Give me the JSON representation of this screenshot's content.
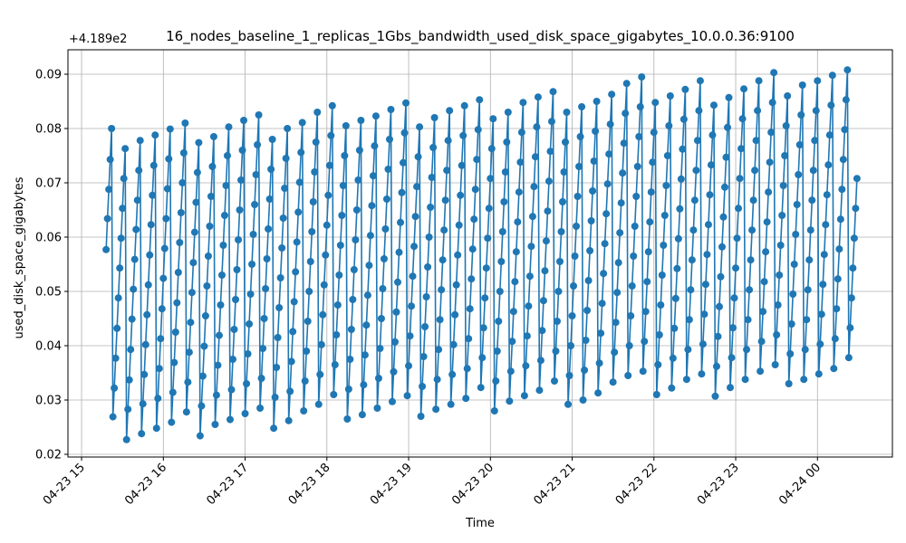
{
  "chart_data": {
    "type": "line",
    "title": "16_nodes_baseline_1_replicas_1Gbs_bandwidth_used_disk_space_gigabytes_10.0.0.36:9100",
    "xlabel": "Time",
    "ylabel": "used_disk_space_gigabytes",
    "offset_label": "+4.189e2",
    "y_offset": 418.9,
    "xlim": [
      "2024-04-23 14:50",
      "2024-04-24 00:55"
    ],
    "ylim": [
      0.0195,
      0.0945
    ],
    "x_ticks": [
      {
        "value": "2024-04-23 15:00",
        "label": "04-23 15"
      },
      {
        "value": "2024-04-23 16:00",
        "label": "04-23 16"
      },
      {
        "value": "2024-04-23 17:00",
        "label": "04-23 17"
      },
      {
        "value": "2024-04-23 18:00",
        "label": "04-23 18"
      },
      {
        "value": "2024-04-23 19:00",
        "label": "04-23 19"
      },
      {
        "value": "2024-04-23 20:00",
        "label": "04-23 20"
      },
      {
        "value": "2024-04-23 21:00",
        "label": "04-23 21"
      },
      {
        "value": "2024-04-23 22:00",
        "label": "04-23 22"
      },
      {
        "value": "2024-04-23 23:00",
        "label": "04-23 23"
      },
      {
        "value": "2024-04-24 00:00",
        "label": "04-24 00"
      }
    ],
    "y_ticks": [
      {
        "value": 0.02,
        "label": "0.02"
      },
      {
        "value": 0.03,
        "label": "0.03"
      },
      {
        "value": 0.04,
        "label": "0.04"
      },
      {
        "value": 0.05,
        "label": "0.05"
      },
      {
        "value": 0.06,
        "label": "0.06"
      },
      {
        "value": 0.07,
        "label": "0.07"
      },
      {
        "value": 0.08,
        "label": "0.08"
      },
      {
        "value": 0.09,
        "label": "0.09"
      }
    ],
    "grid": true,
    "line_color": "#1f77b4",
    "marker": "circle",
    "series": [
      {
        "start": "2024-04-23 15:18",
        "step_minutes": 1,
        "values": [
          0.0577,
          0.0634,
          0.0688,
          0.0743,
          0.08,
          0.0269,
          0.0322,
          0.0377,
          0.0432,
          0.0488,
          0.0543,
          0.0598,
          0.0653,
          0.0708,
          0.0763,
          0.0227,
          0.0283,
          0.0337,
          0.0393,
          0.0449,
          0.0504,
          0.0559,
          0.0614,
          0.0668,
          0.0723,
          0.0778,
          0.0238,
          0.0293,
          0.0347,
          0.0402,
          0.0457,
          0.0512,
          0.0567,
          0.0623,
          0.0677,
          0.0732,
          0.0788,
          0.0248,
          0.0303,
          0.0358,
          0.0413,
          0.0468,
          0.0524,
          0.0579,
          0.0634,
          0.0689,
          0.0744,
          0.0799,
          0.0259,
          0.0314,
          0.0369,
          0.0425,
          0.0479,
          0.0535,
          0.059,
          0.0645,
          0.07,
          0.0755,
          0.081,
          0.0278,
          0.0333,
          0.0388,
          0.0443,
          0.0498,
          0.0553,
          0.0609,
          0.0664,
          0.0719,
          0.0774,
          0.0234,
          0.0289,
          0.0344,
          0.0399,
          0.0455,
          0.051,
          0.0565,
          0.062,
          0.0675,
          0.073,
          0.0785,
          0.0255,
          0.0309,
          0.0364,
          0.0419,
          0.0475,
          0.053,
          0.0585,
          0.064,
          0.0695,
          0.075,
          0.0803,
          0.0264,
          0.0319,
          0.0375,
          0.043,
          0.0485,
          0.054,
          0.0595,
          0.065,
          0.0705,
          0.076,
          0.0815,
          0.0275,
          0.033,
          0.0385,
          0.044,
          0.0495,
          0.055,
          0.0605,
          0.066,
          0.0715,
          0.077,
          0.0825,
          0.0285,
          0.034,
          0.0395,
          0.045,
          0.0505,
          0.056,
          0.0615,
          0.067,
          0.0725,
          0.078,
          0.0248,
          0.0305,
          0.036,
          0.0415,
          0.047,
          0.0525,
          0.058,
          0.0635,
          0.069,
          0.0745,
          0.08,
          0.0262,
          0.0316,
          0.0371,
          0.0426,
          0.0481,
          0.0536,
          0.0591,
          0.0646,
          0.0701,
          0.0756,
          0.0811,
          0.028,
          0.0335,
          0.039,
          0.0445,
          0.05,
          0.0555,
          0.061,
          0.0665,
          0.072,
          0.0775,
          0.083,
          0.0292,
          0.0347,
          0.0402,
          0.0457,
          0.0512,
          0.0567,
          0.0622,
          0.0677,
          0.0732,
          0.0787,
          0.0842,
          0.031,
          0.0365,
          0.042,
          0.0475,
          0.053,
          0.0585,
          0.064,
          0.0695,
          0.075,
          0.0805,
          0.0265,
          0.032,
          0.0375,
          0.043,
          0.0485,
          0.054,
          0.0595,
          0.065,
          0.0705,
          0.076,
          0.0815,
          0.0273,
          0.0328,
          0.0383,
          0.0438,
          0.0493,
          0.0548,
          0.0603,
          0.0658,
          0.0713,
          0.0768,
          0.0823,
          0.0285,
          0.034,
          0.0395,
          0.045,
          0.0505,
          0.056,
          0.0615,
          0.067,
          0.0725,
          0.078,
          0.0835,
          0.0297,
          0.0352,
          0.0407,
          0.0462,
          0.0517,
          0.0572,
          0.0627,
          0.0682,
          0.0737,
          0.0792,
          0.0847,
          0.0308,
          0.0363,
          0.0418,
          0.0473,
          0.0528,
          0.0583,
          0.0638,
          0.0693,
          0.0748,
          0.0803,
          0.027,
          0.0325,
          0.038,
          0.0435,
          0.049,
          0.0545,
          0.06,
          0.0655,
          0.071,
          0.0765,
          0.082,
          0.0283,
          0.0338,
          0.0393,
          0.0448,
          0.0503,
          0.0558,
          0.0613,
          0.0668,
          0.0723,
          0.0778,
          0.0833,
          0.0292,
          0.0347,
          0.0402,
          0.0457,
          0.0512,
          0.0567,
          0.0622,
          0.0677,
          0.0732,
          0.0787,
          0.0842,
          0.0303,
          0.0358,
          0.0413,
          0.0468,
          0.0523,
          0.0578,
          0.0633,
          0.0688,
          0.0743,
          0.0798,
          0.0853,
          0.0323,
          0.0378,
          0.0433,
          0.0488,
          0.0543,
          0.0598,
          0.0653,
          0.0708,
          0.0763,
          0.0818,
          0.028,
          0.0335,
          0.039,
          0.0445,
          0.05,
          0.0555,
          0.061,
          0.0665,
          0.072,
          0.0775,
          0.083,
          0.0298,
          0.0353,
          0.0408,
          0.0463,
          0.0518,
          0.0573,
          0.0628,
          0.0683,
          0.0738,
          0.0793,
          0.0848,
          0.0308,
          0.0363,
          0.0418,
          0.0473,
          0.0528,
          0.0583,
          0.0638,
          0.0693,
          0.0748,
          0.0803,
          0.0858,
          0.0318,
          0.0373,
          0.0428,
          0.0483,
          0.0538,
          0.0593,
          0.0648,
          0.0703,
          0.0758,
          0.0813,
          0.0868,
          0.0335,
          0.039,
          0.0445,
          0.05,
          0.0555,
          0.061,
          0.0665,
          0.072,
          0.0775,
          0.083,
          0.0292,
          0.0345,
          0.04,
          0.0455,
          0.051,
          0.0565,
          0.062,
          0.0675,
          0.073,
          0.0785,
          0.084,
          0.03,
          0.0355,
          0.041,
          0.0465,
          0.052,
          0.0575,
          0.063,
          0.0685,
          0.074,
          0.0795,
          0.085,
          0.0313,
          0.0368,
          0.0423,
          0.0478,
          0.0533,
          0.0588,
          0.0643,
          0.0698,
          0.0753,
          0.0808,
          0.0863,
          0.0333,
          0.0388,
          0.0443,
          0.0498,
          0.0553,
          0.0608,
          0.0663,
          0.0718,
          0.0773,
          0.0828,
          0.0883,
          0.0345,
          0.04,
          0.0455,
          0.051,
          0.0565,
          0.062,
          0.0675,
          0.073,
          0.0785,
          0.084,
          0.0895,
          0.0353,
          0.0408,
          0.0463,
          0.0518,
          0.0573,
          0.0628,
          0.0683,
          0.0738,
          0.0793,
          0.0848,
          0.031,
          0.0365,
          0.042,
          0.0475,
          0.053,
          0.0585,
          0.064,
          0.0695,
          0.075,
          0.0805,
          0.086,
          0.0322,
          0.0377,
          0.0432,
          0.0487,
          0.0542,
          0.0597,
          0.0652,
          0.0707,
          0.0762,
          0.0817,
          0.0872,
          0.0338,
          0.0393,
          0.0448,
          0.0503,
          0.0558,
          0.0613,
          0.0668,
          0.0723,
          0.0778,
          0.0833,
          0.0888,
          0.0348,
          0.0403,
          0.0458,
          0.0513,
          0.0568,
          0.0623,
          0.0678,
          0.0733,
          0.0788,
          0.0843,
          0.0307,
          0.0362,
          0.0417,
          0.0472,
          0.0527,
          0.0582,
          0.0637,
          0.0692,
          0.0747,
          0.0802,
          0.0857,
          0.0323,
          0.0378,
          0.0433,
          0.0488,
          0.0543,
          0.0598,
          0.0653,
          0.0708,
          0.0763,
          0.0818,
          0.0873,
          0.0338,
          0.0393,
          0.0448,
          0.0503,
          0.0558,
          0.0613,
          0.0668,
          0.0723,
          0.0778,
          0.0833,
          0.0888,
          0.0353,
          0.0408,
          0.0463,
          0.0518,
          0.0573,
          0.0628,
          0.0683,
          0.0738,
          0.0793,
          0.0848,
          0.0903,
          0.0365,
          0.042,
          0.0475,
          0.053,
          0.0585,
          0.064,
          0.0695,
          0.075,
          0.0805,
          0.086,
          0.033,
          0.0385,
          0.044,
          0.0495,
          0.055,
          0.0605,
          0.066,
          0.0715,
          0.077,
          0.0825,
          0.088,
          0.0338,
          0.0393,
          0.0448,
          0.0503,
          0.0558,
          0.0613,
          0.0668,
          0.0723,
          0.0778,
          0.0833,
          0.0888,
          0.0348,
          0.0403,
          0.0458,
          0.0513,
          0.0568,
          0.0623,
          0.0678,
          0.0733,
          0.0788,
          0.0843,
          0.0898,
          0.0358,
          0.0413,
          0.0468,
          0.0523,
          0.0578,
          0.0633,
          0.0688,
          0.0743,
          0.0798,
          0.0853,
          0.0908,
          0.0378,
          0.0433,
          0.0488,
          0.0543,
          0.0598,
          0.0653,
          0.0708
        ]
      }
    ]
  }
}
